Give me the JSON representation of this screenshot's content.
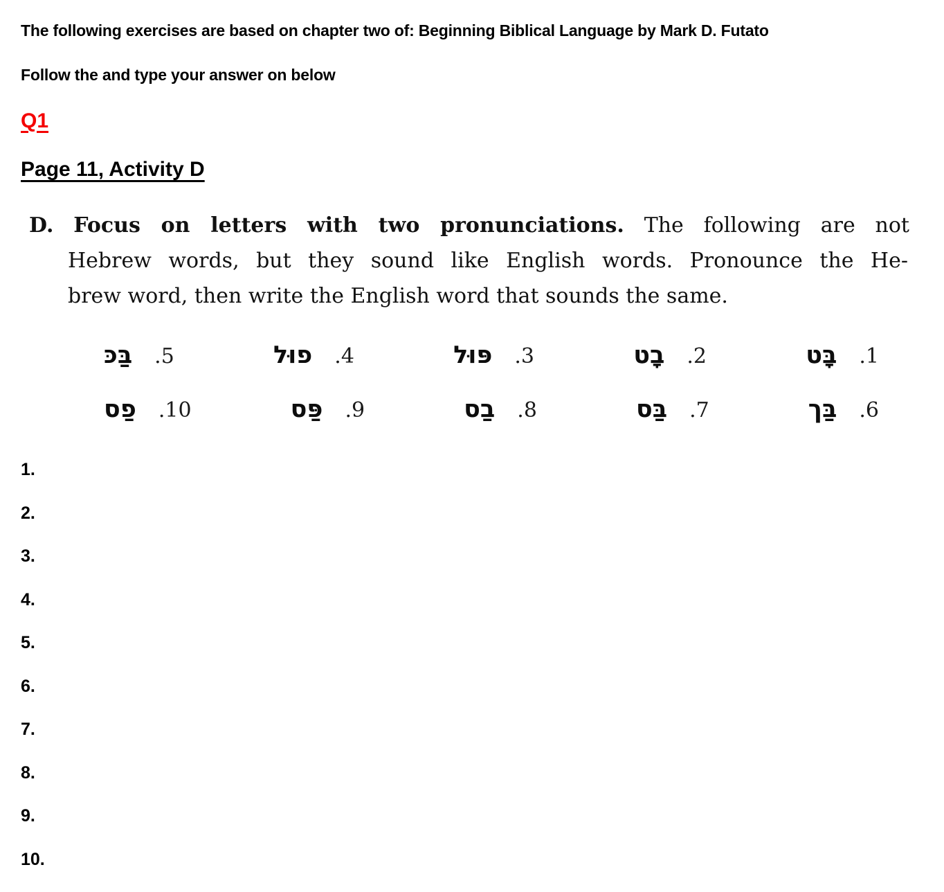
{
  "page": {
    "background": "#ffffff",
    "accent_red": "#f40000"
  },
  "header": {
    "line1": "The following exercises are based on chapter two of: Beginning Biblical Language by Mark D. Futato",
    "line2": "Follow the and type your answer on below",
    "q_label": "Q1",
    "page_title": "Page 11, Activity D"
  },
  "excerpt": {
    "label": "D.",
    "heading": "Focus on letters with two pronunciations.",
    "line1_rest": "The following are not",
    "line2": "Hebrew words, but they sound like English words. Pronounce the He-",
    "line3": "brew word, then write the English word that sounds the same."
  },
  "exercise": {
    "row1": [
      {
        "num": "1.",
        "word": "בָּט"
      },
      {
        "num": "2.",
        "word": "בָט"
      },
      {
        "num": "3.",
        "word": "פּוּל"
      },
      {
        "num": "4.",
        "word": "פוּל"
      },
      {
        "num": "5.",
        "word": "בַּכּ"
      }
    ],
    "row2": [
      {
        "num": "6.",
        "word": "בַּך"
      },
      {
        "num": "7.",
        "word": "בַּס"
      },
      {
        "num": "8.",
        "word": "בַס"
      },
      {
        "num": "9.",
        "word": "פַּס"
      },
      {
        "num": "10.",
        "word": "פַס"
      }
    ]
  },
  "answers": [
    "1.",
    "2.",
    "3.",
    "4.",
    "5.",
    "6.",
    "7.",
    "8.",
    "9.",
    "10."
  ]
}
